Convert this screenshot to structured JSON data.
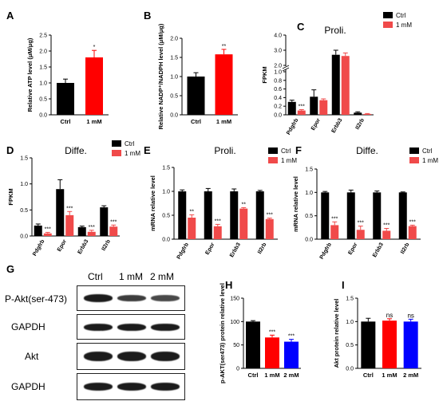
{
  "chart_data": [
    {
      "id": "A",
      "panel_label": "A",
      "type": "bar",
      "categories": [
        "Ctrl",
        "1 mM"
      ],
      "values": [
        1.0,
        1.8
      ],
      "errors": [
        0.12,
        0.22
      ],
      "colors": [
        "#000000",
        "#ff0000"
      ],
      "ylabel": "Relative ATP level (μM/μg)",
      "ylim": [
        0,
        2.5
      ],
      "yticks": [
        "0.0",
        "0.5",
        "1.0",
        "1.5",
        "2.0",
        "2.5"
      ],
      "sig": [
        "",
        "*"
      ]
    },
    {
      "id": "B",
      "panel_label": "B",
      "type": "bar",
      "categories": [
        "Ctrl",
        "1 mM"
      ],
      "values": [
        1.0,
        1.58
      ],
      "errors": [
        0.1,
        0.13
      ],
      "colors": [
        "#000000",
        "#ff0000"
      ],
      "ylabel": "Relative NADP⁺/NADPH level (μM/μg)",
      "ylim": [
        0,
        2.0
      ],
      "yticks": [
        "0.0",
        "0.5",
        "1.0",
        "1.5",
        "2.0"
      ],
      "sig": [
        "",
        "**"
      ]
    },
    {
      "id": "C",
      "panel_label": "C",
      "type": "bar",
      "title": "Proli.",
      "categories": [
        "Pdgfrb",
        "Epor",
        "Erbb3",
        "Il2rb"
      ],
      "series": [
        {
          "name": "Ctrl",
          "color": "#000000",
          "values": [
            0.3,
            0.42,
            2.7,
            0.05
          ],
          "errors": [
            0.04,
            0.16,
            0.3,
            0.02
          ]
        },
        {
          "name": "1 mM",
          "color": "#f04a4a",
          "values": [
            0.1,
            0.34,
            2.62,
            0.02
          ],
          "errors": [
            0.02,
            0.03,
            0.2,
            0.01
          ]
        }
      ],
      "ylabel": "FPKM",
      "ylim": [
        0,
        4.0
      ],
      "yticks": [
        "0.0",
        "0.2",
        "0.4",
        "0.6",
        "0.8",
        "1.0",
        "2.0",
        "3.0",
        "4.0"
      ],
      "axis_break": [
        1.0,
        2.0
      ],
      "sig": [
        "***",
        "",
        "",
        ""
      ]
    },
    {
      "id": "D",
      "panel_label": "D",
      "type": "bar",
      "title": "Diffe.",
      "categories": [
        "Pdgfrb",
        "Epor",
        "Erbb3",
        "Il2rb"
      ],
      "series": [
        {
          "name": "Ctrl",
          "color": "#000000",
          "values": [
            0.2,
            0.9,
            0.17,
            0.55
          ],
          "errors": [
            0.03,
            0.18,
            0.02,
            0.03
          ]
        },
        {
          "name": "1 mM",
          "color": "#f04a4a",
          "values": [
            0.05,
            0.4,
            0.08,
            0.18
          ],
          "errors": [
            0.02,
            0.07,
            0.03,
            0.03
          ]
        }
      ],
      "ylabel": "FPKM",
      "ylim": [
        0,
        1.5
      ],
      "yticks": [
        "0.0",
        "0.5",
        "1.0",
        "1.5"
      ],
      "sig": [
        "***",
        "***",
        "***",
        "***"
      ]
    },
    {
      "id": "E",
      "panel_label": "E",
      "type": "bar",
      "title": "Proli.",
      "categories": [
        "Pdgfrb",
        "Epor",
        "Erbb3",
        "Il2rb"
      ],
      "series": [
        {
          "name": "Ctrl",
          "color": "#000000",
          "values": [
            1.0,
            1.0,
            1.0,
            1.0
          ],
          "errors": [
            0.03,
            0.06,
            0.05,
            0.02
          ]
        },
        {
          "name": "1 mM",
          "color": "#f04a4a",
          "values": [
            0.45,
            0.27,
            0.64,
            0.42
          ],
          "errors": [
            0.06,
            0.04,
            0.02,
            0.02
          ]
        }
      ],
      "ylabel": "mRNA relative level",
      "ylim": [
        0,
        1.5
      ],
      "yticks": [
        "0.0",
        "0.5",
        "1.0",
        "1.5"
      ],
      "sig": [
        "**",
        "***",
        "**",
        "***"
      ]
    },
    {
      "id": "F",
      "panel_label": "F",
      "type": "bar",
      "title": "Diffe.",
      "categories": [
        "Pdgfrb",
        "Epor",
        "Erbb3",
        "Il2rb"
      ],
      "series": [
        {
          "name": "Ctrl",
          "color": "#000000",
          "values": [
            1.0,
            1.0,
            1.0,
            1.0
          ],
          "errors": [
            0.02,
            0.05,
            0.03,
            0.01
          ]
        },
        {
          "name": "1 mM",
          "color": "#f04a4a",
          "values": [
            0.3,
            0.2,
            0.18,
            0.28
          ],
          "errors": [
            0.07,
            0.08,
            0.05,
            0.02
          ]
        }
      ],
      "ylabel": "mRNA relative level",
      "ylim": [
        0,
        1.5
      ],
      "yticks": [
        "0.0",
        "0.5",
        "1.0",
        "1.5"
      ],
      "sig": [
        "***",
        "***",
        "***",
        "***"
      ]
    },
    {
      "id": "H",
      "panel_label": "H",
      "type": "bar",
      "categories": [
        "Ctrl",
        "1 mM",
        "2 mM"
      ],
      "values": [
        100,
        66,
        57
      ],
      "errors": [
        2,
        5,
        5
      ],
      "colors": [
        "#000000",
        "#ff0000",
        "#0000ff"
      ],
      "ylabel": "p-AKT(ser473) protein relative level",
      "ylim": [
        0,
        150
      ],
      "yticks": [
        "0",
        "50",
        "100",
        "150"
      ],
      "sig": [
        "",
        "***",
        "***"
      ]
    },
    {
      "id": "I",
      "panel_label": "I",
      "type": "bar",
      "categories": [
        "Ctrl",
        "1 mM",
        "2 mM"
      ],
      "values": [
        1.0,
        1.02,
        1.0
      ],
      "errors": [
        0.07,
        0.04,
        0.05
      ],
      "colors": [
        "#000000",
        "#ff0000",
        "#0000ff"
      ],
      "ylabel": "Akt protein relative level",
      "ylim": [
        0,
        1.5
      ],
      "yticks": [
        "0.0",
        "0.5",
        "1.0",
        "1.5"
      ],
      "sig": [
        "",
        "ns",
        "ns"
      ]
    }
  ],
  "western_blot": {
    "panel_label": "G",
    "lanes": [
      "Ctrl",
      "1 mM",
      "2 mM"
    ],
    "rows": [
      {
        "label": "P-Akt(ser-473)",
        "intensity": [
          1.0,
          0.75,
          0.7
        ]
      },
      {
        "label": "GAPDH",
        "intensity": [
          0.95,
          0.95,
          0.95
        ]
      },
      {
        "label": "Akt",
        "intensity": [
          1.0,
          1.0,
          1.0
        ]
      },
      {
        "label": "GAPDH",
        "intensity": [
          0.95,
          0.95,
          0.95
        ]
      }
    ]
  }
}
